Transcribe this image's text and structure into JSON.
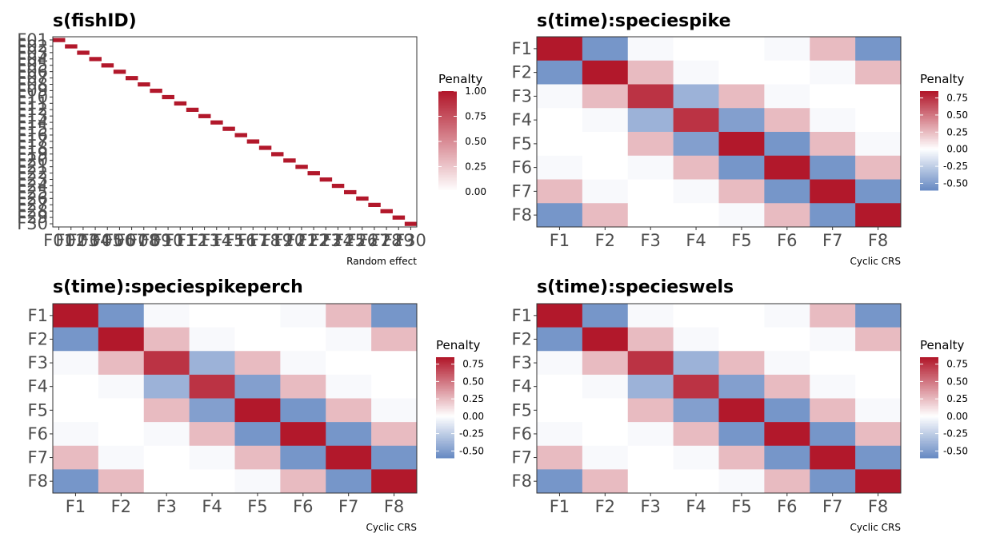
{
  "chart_data": [
    {
      "type": "heatmap",
      "title": "s(fishID)",
      "xlabel": "Random effect",
      "legend_title": "Penalty",
      "legend_ticks": [
        "1.00",
        "0.75",
        "0.50",
        "0.25",
        "0.00"
      ],
      "legend_range": [
        0,
        1
      ],
      "labels": [
        "F01",
        "F02",
        "F03",
        "F04",
        "F05",
        "F06",
        "F07",
        "F08",
        "F09",
        "F10",
        "F11",
        "F12",
        "F13",
        "F14",
        "F15",
        "F16",
        "F17",
        "F18",
        "F19",
        "F20",
        "F21",
        "F22",
        "F23",
        "F24",
        "F25",
        "F26",
        "F27",
        "F28",
        "F29",
        "F30"
      ],
      "matrix": "identity"
    },
    {
      "type": "heatmap",
      "title": "s(time):speciespike",
      "xlabel": "Cyclic CRS",
      "legend_title": "Penalty",
      "legend_ticks": [
        "0.75",
        "0.50",
        "0.25",
        "0.00",
        "-0.25",
        "-0.50"
      ],
      "legend_range": [
        -0.6,
        0.85
      ],
      "labels": [
        "F1",
        "F2",
        "F3",
        "F4",
        "F5",
        "F6",
        "F7",
        "F8"
      ],
      "matrix": [
        [
          0.85,
          -0.55,
          -0.03,
          0.0,
          0.0,
          -0.03,
          0.25,
          -0.55
        ],
        [
          -0.55,
          0.85,
          0.25,
          -0.03,
          0.0,
          0.0,
          -0.03,
          0.25
        ],
        [
          -0.03,
          0.25,
          0.75,
          -0.4,
          0.25,
          -0.03,
          0.0,
          0.0
        ],
        [
          0.0,
          -0.03,
          -0.4,
          0.75,
          -0.5,
          0.25,
          -0.03,
          0.0
        ],
        [
          0.0,
          0.0,
          0.25,
          -0.5,
          0.85,
          -0.55,
          0.25,
          -0.03
        ],
        [
          -0.03,
          0.0,
          -0.03,
          0.25,
          -0.55,
          0.85,
          -0.55,
          0.25
        ],
        [
          0.25,
          -0.03,
          0.0,
          -0.03,
          0.25,
          -0.55,
          0.85,
          -0.55
        ],
        [
          -0.55,
          0.25,
          0.0,
          0.0,
          -0.03,
          0.25,
          -0.55,
          0.85
        ]
      ]
    },
    {
      "type": "heatmap",
      "title": "s(time):speciespikeperch",
      "xlabel": "Cyclic CRS",
      "legend_title": "Penalty",
      "legend_ticks": [
        "0.75",
        "0.50",
        "0.25",
        "0.00",
        "-0.25",
        "-0.50"
      ],
      "legend_range": [
        -0.6,
        0.85
      ],
      "labels": [
        "F1",
        "F2",
        "F3",
        "F4",
        "F5",
        "F6",
        "F7",
        "F8"
      ],
      "matrix": [
        [
          0.85,
          -0.55,
          -0.03,
          0.0,
          0.0,
          -0.03,
          0.25,
          -0.55
        ],
        [
          -0.55,
          0.85,
          0.25,
          -0.03,
          0.0,
          0.0,
          -0.03,
          0.25
        ],
        [
          -0.03,
          0.25,
          0.75,
          -0.4,
          0.25,
          -0.03,
          0.0,
          0.0
        ],
        [
          0.0,
          -0.03,
          -0.4,
          0.75,
          -0.5,
          0.25,
          -0.03,
          0.0
        ],
        [
          0.0,
          0.0,
          0.25,
          -0.5,
          0.85,
          -0.55,
          0.25,
          -0.03
        ],
        [
          -0.03,
          0.0,
          -0.03,
          0.25,
          -0.55,
          0.85,
          -0.55,
          0.25
        ],
        [
          0.25,
          -0.03,
          0.0,
          -0.03,
          0.25,
          -0.55,
          0.85,
          -0.55
        ],
        [
          -0.55,
          0.25,
          0.0,
          0.0,
          -0.03,
          0.25,
          -0.55,
          0.85
        ]
      ]
    },
    {
      "type": "heatmap",
      "title": "s(time):specieswels",
      "xlabel": "Cyclic CRS",
      "legend_title": "Penalty",
      "legend_ticks": [
        "0.75",
        "0.50",
        "0.25",
        "0.00",
        "-0.25",
        "-0.50"
      ],
      "legend_range": [
        -0.6,
        0.85
      ],
      "labels": [
        "F1",
        "F2",
        "F3",
        "F4",
        "F5",
        "F6",
        "F7",
        "F8"
      ],
      "matrix": [
        [
          0.85,
          -0.55,
          -0.03,
          0.0,
          0.0,
          -0.03,
          0.25,
          -0.55
        ],
        [
          -0.55,
          0.85,
          0.25,
          -0.03,
          0.0,
          0.0,
          -0.03,
          0.25
        ],
        [
          -0.03,
          0.25,
          0.75,
          -0.4,
          0.25,
          -0.03,
          0.0,
          0.0
        ],
        [
          0.0,
          -0.03,
          -0.4,
          0.75,
          -0.5,
          0.25,
          -0.03,
          0.0
        ],
        [
          0.0,
          0.0,
          0.25,
          -0.5,
          0.85,
          -0.55,
          0.25,
          -0.03
        ],
        [
          -0.03,
          0.0,
          -0.03,
          0.25,
          -0.55,
          0.85,
          -0.55,
          0.25
        ],
        [
          0.25,
          -0.03,
          0.0,
          -0.03,
          0.25,
          -0.55,
          0.85,
          -0.55
        ],
        [
          -0.55,
          0.25,
          0.0,
          0.0,
          -0.03,
          0.25,
          -0.55,
          0.85
        ]
      ]
    }
  ],
  "colors": {
    "high": "#b2182b",
    "mid": "#ffffff",
    "low": "#6a8cc4",
    "panel_border": "#333333"
  }
}
